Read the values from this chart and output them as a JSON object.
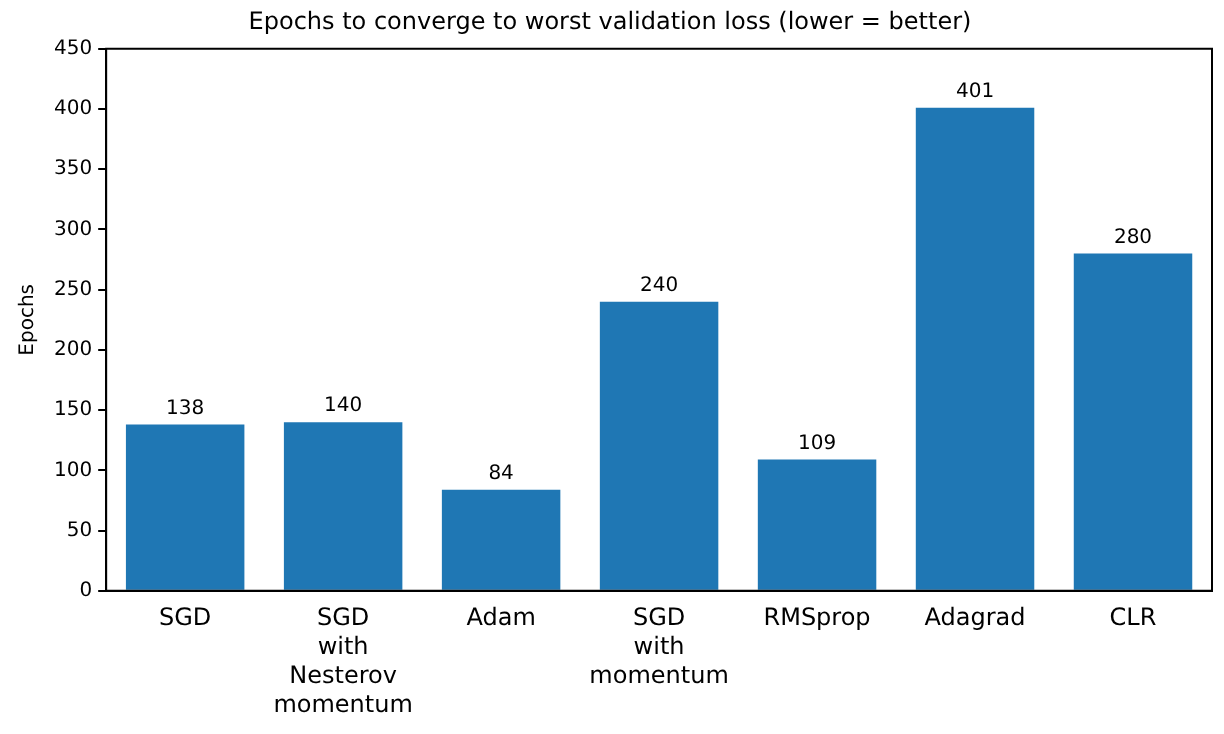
{
  "chart_data": {
    "type": "bar",
    "title": "Epochs to converge to worst validation loss (lower = better)",
    "ylabel": "Epochs",
    "categories": [
      "SGD",
      "SGD with Nesterov momentum",
      "Adam",
      "SGD with momentum",
      "RMSprop",
      "Adagrad",
      "CLR"
    ],
    "values": [
      138,
      140,
      84,
      240,
      109,
      401,
      280
    ],
    "color": "#1f77b4",
    "ylim": [
      0,
      450
    ],
    "yticks": [
      0,
      50,
      100,
      150,
      200,
      250,
      300,
      350,
      400,
      450
    ],
    "grid": false,
    "data_labels": true
  }
}
